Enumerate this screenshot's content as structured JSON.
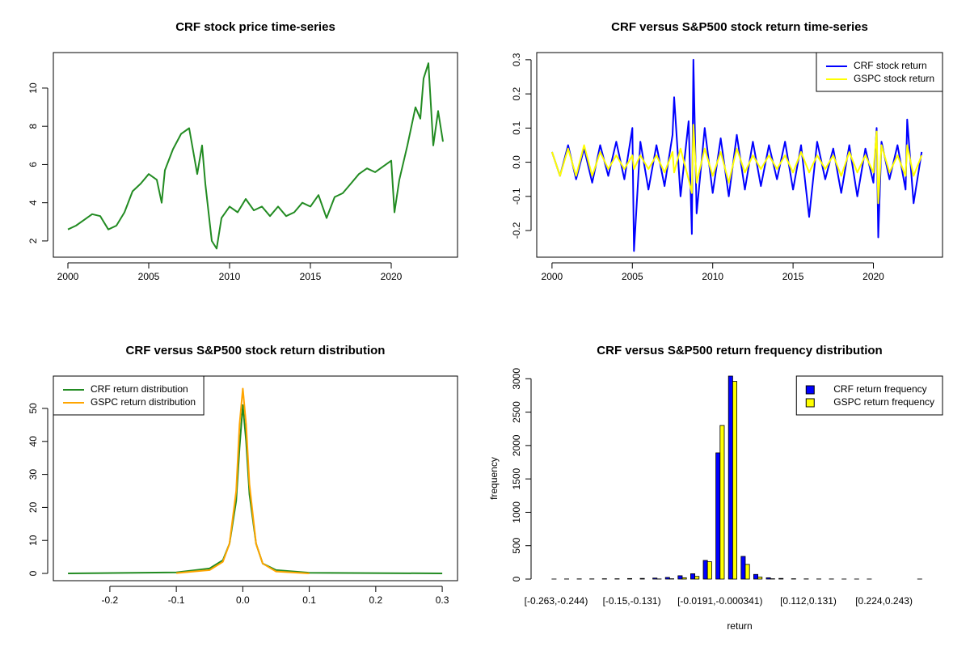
{
  "chart_data": [
    {
      "type": "line",
      "title": "CRF stock price time-series",
      "x": [
        2000,
        2000.5,
        2001,
        2001.5,
        2002,
        2002.5,
        2003,
        2003.5,
        2004,
        2004.5,
        2005,
        2005.5,
        2005.8,
        2006,
        2006.5,
        2007,
        2007.5,
        2008,
        2008.3,
        2008.5,
        2008.9,
        2009.2,
        2009.5,
        2010,
        2010.5,
        2011,
        2011.5,
        2012,
        2012.5,
        2013,
        2013.5,
        2014,
        2014.5,
        2015,
        2015.5,
        2016,
        2016.5,
        2017,
        2017.5,
        2018,
        2018.5,
        2019,
        2019.5,
        2020,
        2020.2,
        2020.5,
        2021,
        2021.5,
        2021.8,
        2022,
        2022.3,
        2022.6,
        2022.9,
        2023.2
      ],
      "series": [
        {
          "name": "CRF",
          "color": "#228B22",
          "values": [
            2.6,
            2.8,
            3.1,
            3.4,
            3.3,
            2.6,
            2.8,
            3.5,
            4.6,
            5.0,
            5.5,
            5.2,
            4.0,
            5.7,
            6.8,
            7.6,
            7.9,
            5.5,
            7.0,
            5.0,
            2.0,
            1.6,
            3.2,
            3.8,
            3.5,
            4.2,
            3.6,
            3.8,
            3.3,
            3.8,
            3.3,
            3.5,
            4.0,
            3.8,
            4.4,
            3.2,
            4.3,
            4.5,
            5.0,
            5.5,
            5.8,
            5.6,
            5.9,
            6.2,
            3.5,
            5.2,
            7.0,
            9.0,
            8.4,
            10.5,
            11.3,
            7.0,
            8.8,
            7.2
          ]
        }
      ],
      "xlim": [
        1999.1,
        2024.1
      ],
      "xticks": [
        2000,
        2005,
        2010,
        2015,
        2020
      ],
      "ylim": [
        1.15,
        11.86
      ],
      "yticks": [
        2,
        4,
        6,
        8,
        10
      ],
      "grid": false
    },
    {
      "type": "line",
      "title": "CRF versus S&P500 stock return time-series",
      "x": [
        2000,
        2000.5,
        2001,
        2001.5,
        2002,
        2002.5,
        2003,
        2003.5,
        2004,
        2004.5,
        2005,
        2005.1,
        2005.5,
        2006,
        2006.5,
        2007,
        2007.5,
        2007.6,
        2008,
        2008.5,
        2008.7,
        2008.8,
        2009,
        2009.5,
        2010,
        2010.5,
        2011,
        2011.5,
        2012,
        2012.5,
        2013,
        2013.5,
        2014,
        2014.5,
        2015,
        2015.5,
        2016,
        2016.5,
        2017,
        2017.5,
        2018,
        2018.5,
        2019,
        2019.5,
        2020,
        2020.2,
        2020.3,
        2020.5,
        2021,
        2021.5,
        2022,
        2022.1,
        2022.5,
        2023
      ],
      "series": [
        {
          "name": "CRF stock return",
          "color": "#0000FF",
          "values": [
            0.03,
            -0.04,
            0.05,
            -0.05,
            0.04,
            -0.06,
            0.05,
            -0.04,
            0.06,
            -0.05,
            0.1,
            -0.26,
            0.06,
            -0.08,
            0.05,
            -0.07,
            0.08,
            0.19,
            -0.1,
            0.12,
            -0.21,
            0.3,
            -0.15,
            0.1,
            -0.09,
            0.07,
            -0.1,
            0.08,
            -0.08,
            0.06,
            -0.07,
            0.05,
            -0.05,
            0.06,
            -0.08,
            0.05,
            -0.16,
            0.06,
            -0.05,
            0.04,
            -0.09,
            0.05,
            -0.1,
            0.04,
            -0.06,
            0.1,
            -0.22,
            0.06,
            -0.05,
            0.05,
            -0.08,
            0.125,
            -0.12,
            0.03
          ]
        },
        {
          "name": "GSPC stock return",
          "color": "#FFFF00",
          "values": [
            0.03,
            -0.04,
            0.04,
            -0.04,
            0.05,
            -0.04,
            0.03,
            -0.02,
            0.02,
            -0.02,
            0.02,
            -0.02,
            0.02,
            -0.02,
            0.02,
            -0.03,
            0.03,
            -0.03,
            0.04,
            -0.05,
            -0.09,
            0.11,
            -0.06,
            0.04,
            -0.04,
            0.03,
            -0.06,
            0.04,
            -0.03,
            0.02,
            -0.02,
            0.02,
            -0.02,
            0.02,
            -0.03,
            0.03,
            -0.03,
            0.02,
            -0.02,
            0.02,
            -0.04,
            0.03,
            -0.03,
            0.02,
            -0.03,
            0.09,
            -0.12,
            0.05,
            -0.03,
            0.02,
            -0.04,
            0.05,
            -0.04,
            0.02
          ]
        }
      ],
      "xlim": [
        1999.05,
        2024.3
      ],
      "xticks": [
        2000,
        2005,
        2010,
        2015,
        2020
      ],
      "ylim": [
        -0.278,
        0.321
      ],
      "yticks": [
        -0.2,
        -0.1,
        {
          "value": 0,
          "label": "0.0"
        },
        0.1,
        0.2,
        0.3
      ],
      "legend": "topright",
      "grid": false
    },
    {
      "type": "line",
      "title": "CRF versus S&P500 stock return distribution",
      "x": [
        -0.263,
        -0.1,
        -0.05,
        -0.03,
        -0.02,
        -0.01,
        -0.005,
        0,
        0.005,
        0.01,
        0.02,
        0.03,
        0.05,
        0.1,
        0.3
      ],
      "series": [
        {
          "name": "CRF return distribution",
          "color": "#228B22",
          "values": [
            0,
            0.3,
            1.5,
            4,
            9,
            22,
            38,
            51,
            40,
            24,
            9,
            3,
            1,
            0.2,
            0
          ]
        },
        {
          "name": "GSPC return distribution",
          "color": "#FFA500",
          "values": [
            null,
            0.1,
            1,
            3.5,
            9,
            25,
            45,
            56,
            45,
            27,
            9,
            3,
            0.6,
            0,
            null
          ]
        }
      ],
      "xlim": [
        -0.285,
        0.323
      ],
      "xticks": [
        -0.2,
        -0.1,
        {
          "value": 0,
          "label": "0.0"
        },
        0.1,
        0.2,
        0.3
      ],
      "ylim": [
        -2.2,
        59.8
      ],
      "yticks": [
        0,
        10,
        20,
        30,
        40,
        50
      ],
      "legend": "topleft",
      "grid": false
    },
    {
      "type": "bar",
      "title": "CRF versus S&P500 return frequency distribution",
      "x_label": "return",
      "y_label": "frequency",
      "categories": [
        "[-0.263,-0.244)",
        null,
        null,
        null,
        null,
        null,
        "[-0.15,-0.131)",
        null,
        null,
        null,
        null,
        null,
        null,
        "[-0.0191,-0.000341)",
        null,
        null,
        null,
        null,
        null,
        null,
        "[0.112,0.131)",
        null,
        null,
        null,
        null,
        null,
        "[0.224,0.243)",
        null,
        null,
        null
      ],
      "series": [
        {
          "name": "CRF return frequency",
          "color": "#0000FF",
          "values": [
            1,
            2,
            3,
            3,
            5,
            5,
            8,
            10,
            15,
            25,
            50,
            80,
            280,
            1890,
            3040,
            340,
            70,
            20,
            10,
            5,
            3,
            2,
            2,
            1,
            1,
            1,
            0,
            0,
            0,
            1
          ]
        },
        {
          "name": "GSPC return frequency",
          "color": "#FFFF00",
          "values": [
            0,
            0,
            0,
            0,
            0,
            0,
            0,
            0,
            2,
            5,
            20,
            40,
            260,
            2300,
            2960,
            220,
            30,
            5,
            0,
            0,
            0,
            0,
            0,
            0,
            0,
            0,
            0,
            0,
            0,
            0
          ]
        }
      ],
      "ylim": [
        -24,
        3040
      ],
      "yticks": [
        0,
        500,
        1000,
        1500,
        2000,
        2500,
        3000
      ],
      "legend": "topright",
      "grid": false
    }
  ]
}
